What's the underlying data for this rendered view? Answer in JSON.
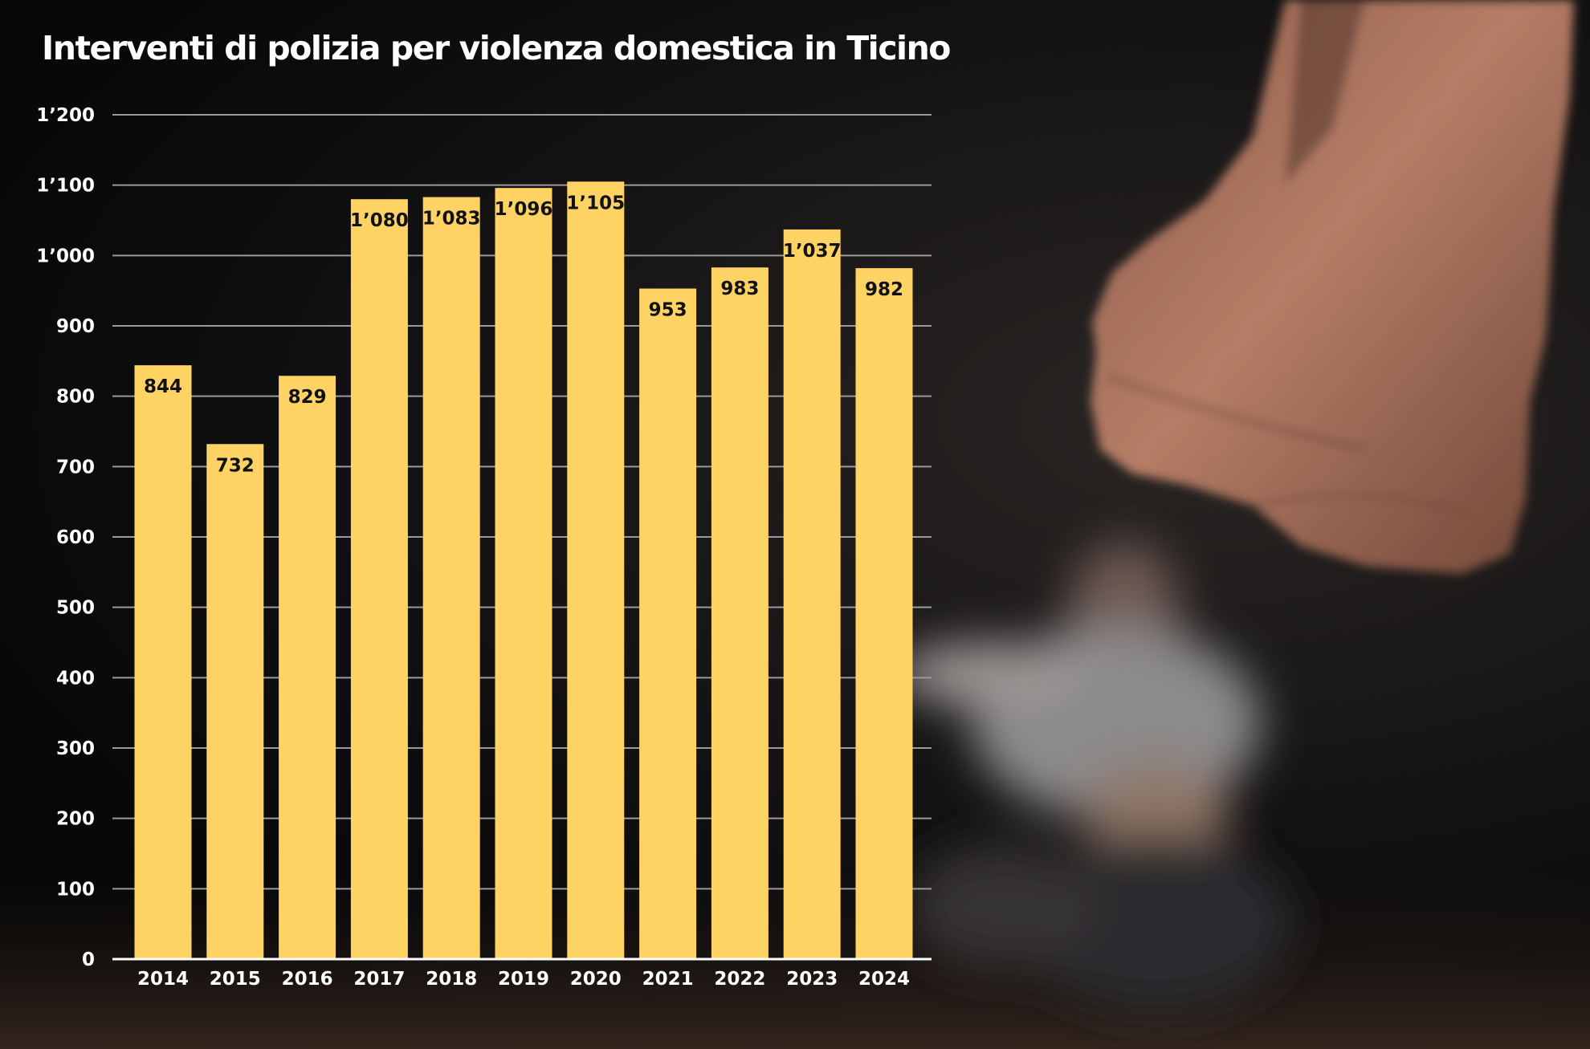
{
  "chart_data": {
    "type": "bar",
    "title": "Interventi di polizia per violenza domestica in Ticino",
    "xlabel": "",
    "ylabel": "",
    "categories": [
      "2014",
      "2015",
      "2016",
      "2017",
      "2018",
      "2019",
      "2020",
      "2021",
      "2022",
      "2023",
      "2024"
    ],
    "values": [
      844,
      732,
      829,
      1080,
      1083,
      1096,
      1105,
      953,
      983,
      1037,
      982
    ],
    "value_labels": [
      "844",
      "732",
      "829",
      "1’080",
      "1’083",
      "1’096",
      "1’105",
      "953",
      "983",
      "1’037",
      "982"
    ],
    "ylim": [
      0,
      1200
    ],
    "yticks": [
      0,
      100,
      200,
      300,
      400,
      500,
      600,
      700,
      800,
      900,
      1000,
      1100,
      1200
    ],
    "ytick_labels": [
      "0",
      "100",
      "200",
      "300",
      "400",
      "500",
      "600",
      "700",
      "800",
      "900",
      "1’000",
      "1’100",
      "1’200"
    ],
    "grid": true,
    "legend": "none",
    "colors": {
      "bar": "#ffd363",
      "grid": "#9a9a9a",
      "axis": "#ffffff",
      "text": "#ffffff",
      "data_label": "#111111"
    }
  },
  "background": {
    "description_icons": [
      "fist-photo",
      "blurred-figure-photo"
    ]
  }
}
